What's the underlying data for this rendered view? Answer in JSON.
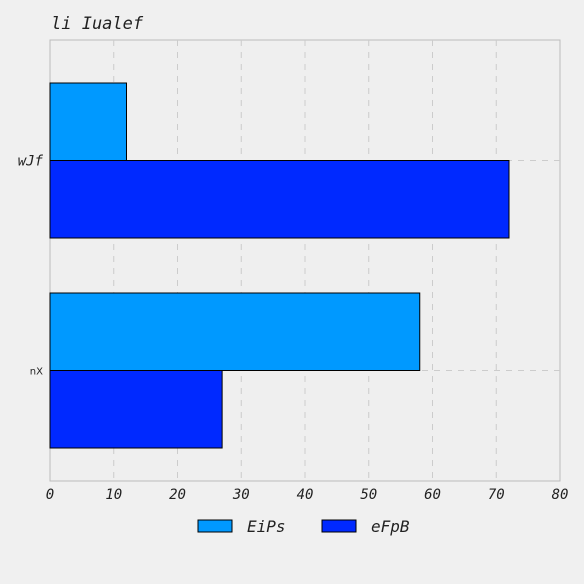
{
  "chart_data": {
    "type": "bar",
    "orientation": "horizontal",
    "title": "li Iualef",
    "categories": [
      "wJf",
      "nX"
    ],
    "series": [
      {
        "name": "EiPs",
        "values": [
          12,
          58
        ],
        "color": "#0099ff"
      },
      {
        "name": "eFpB",
        "values": [
          72,
          27
        ],
        "color": "#0029ff"
      }
    ],
    "xlim": [
      0,
      80
    ],
    "xticks": [
      0,
      10,
      20,
      30,
      40,
      50,
      60,
      70,
      80
    ],
    "xlabel": "",
    "ylabel": "",
    "grid": true,
    "legend_position": "bottom-center"
  }
}
